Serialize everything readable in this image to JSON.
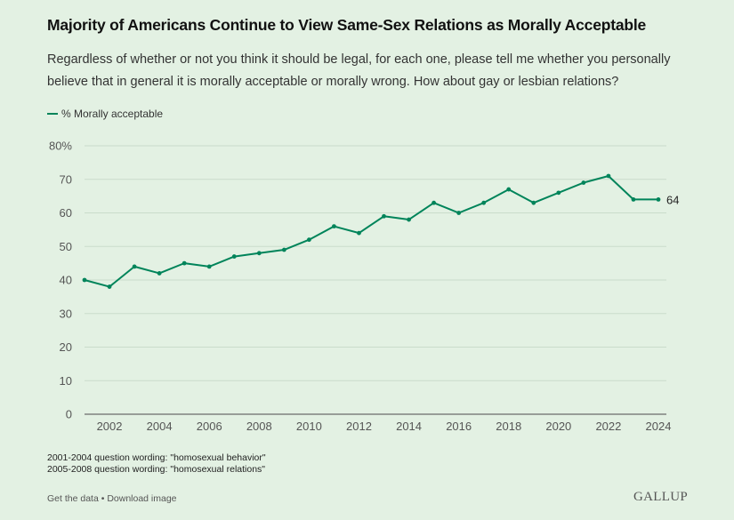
{
  "header": {
    "title": "Majority of Americans Continue to View Same-Sex Relations as Morally Acceptable",
    "subtitle": "Regardless of whether or not you think it should be legal, for each one, please tell me whether you personally believe that in general it is morally acceptable or morally wrong. How about gay or lesbian relations?"
  },
  "legend": {
    "label": "% Morally acceptable",
    "color": "#00845a"
  },
  "notes": [
    "2001-2004 question wording: \"homosexual behavior\"",
    "2005-2008 question wording: \"homosexual relations\""
  ],
  "footer": {
    "get_data": "Get the data",
    "separator": " • ",
    "download": "Download image",
    "brand": "GALLUP"
  },
  "chart_data": {
    "type": "line",
    "title": "Majority of Americans Continue to View Same-Sex Relations as Morally Acceptable",
    "xlabel": "",
    "ylabel": "",
    "x": [
      2001,
      2002,
      2003,
      2004,
      2005,
      2006,
      2007,
      2008,
      2009,
      2010,
      2011,
      2012,
      2013,
      2014,
      2015,
      2016,
      2017,
      2018,
      2019,
      2020,
      2021,
      2022,
      2023,
      2024
    ],
    "series": [
      {
        "name": "% Morally acceptable",
        "color": "#00845a",
        "values": [
          40,
          38,
          44,
          42,
          45,
          44,
          47,
          48,
          49,
          52,
          56,
          54,
          59,
          58,
          63,
          60,
          63,
          67,
          63,
          66,
          69,
          71,
          64,
          64
        ],
        "end_label": "64"
      }
    ],
    "xlim": [
      2001,
      2024
    ],
    "ylim": [
      0,
      80
    ],
    "x_ticks": [
      2002,
      2004,
      2006,
      2008,
      2010,
      2012,
      2014,
      2016,
      2018,
      2020,
      2022,
      2024
    ],
    "x_tick_labels": [
      "2002",
      "2004",
      "2006",
      "2008",
      "2010",
      "2012",
      "2014",
      "2016",
      "2018",
      "2020",
      "2022",
      "2024"
    ],
    "y_ticks": [
      0,
      10,
      20,
      30,
      40,
      50,
      60,
      70,
      80
    ],
    "y_tick_labels": [
      "0",
      "10",
      "20",
      "30",
      "40",
      "50",
      "60",
      "70",
      "80%"
    ],
    "grid": true,
    "legend_position": "top-left"
  }
}
